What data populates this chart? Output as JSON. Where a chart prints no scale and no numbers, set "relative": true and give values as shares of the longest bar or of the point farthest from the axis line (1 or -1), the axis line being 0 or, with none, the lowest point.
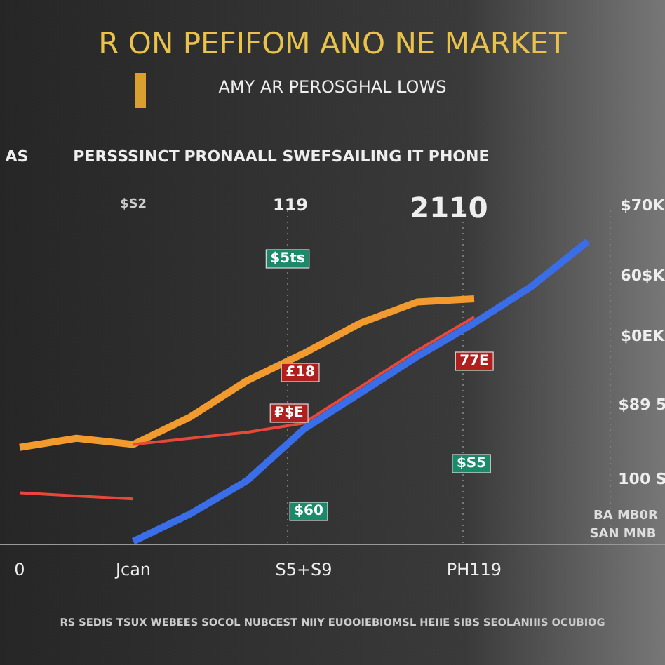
{
  "chart_data": {
    "type": "line",
    "relative": true,
    "title": "R ON PEFIFOM ANO NE MARKET",
    "subtitle": "AMY AR PEROSGHAL LOWS",
    "categories": [
      "0",
      null,
      "Jcan",
      null,
      null,
      "S5+S9",
      null,
      null,
      "PH119",
      null,
      null,
      null
    ],
    "series": [
      {
        "color": "#f39a2e",
        "values": [
          0.32,
          0.35,
          0.33,
          0.42,
          0.54,
          0.63,
          0.73,
          0.8,
          0.81,
          null,
          null,
          null
        ]
      },
      {
        "color": "#e8483a",
        "values": [
          0.17,
          0.16,
          0.15,
          null,
          null,
          null,
          null,
          null,
          null,
          null,
          null,
          null
        ]
      },
      {
        "color": "#e8483a",
        "values": [
          null,
          null,
          0.33,
          0.35,
          0.37,
          0.4,
          0.52,
          0.64,
          0.75,
          null,
          null,
          null
        ]
      },
      {
        "color": "#3a6ee8",
        "values": [
          null,
          null,
          0.01,
          0.1,
          0.21,
          0.38,
          0.5,
          0.62,
          0.73,
          0.85,
          1,
          null
        ]
      }
    ],
    "annotations": [
      "AS",
      "PERSSSINCT",
      "PRONAALL SWEFSAILING IT PHONE",
      "$S2",
      "119",
      "2110",
      "$70K",
      "$5ts",
      "60$K",
      "$0EK",
      "£18",
      "77E",
      "₽$E",
      "$89 5",
      "$S5",
      "100 S",
      "$60",
      "BA MB0R",
      "SAN MNB",
      "RS SEDIS TSUX WEBEES SOCOL NUBCEST NIIY EUOOIEBIOMSL HEIIE SIBS SEOLANIIIS OCUBIOG"
    ],
    "tick_labels": "x"
  }
}
